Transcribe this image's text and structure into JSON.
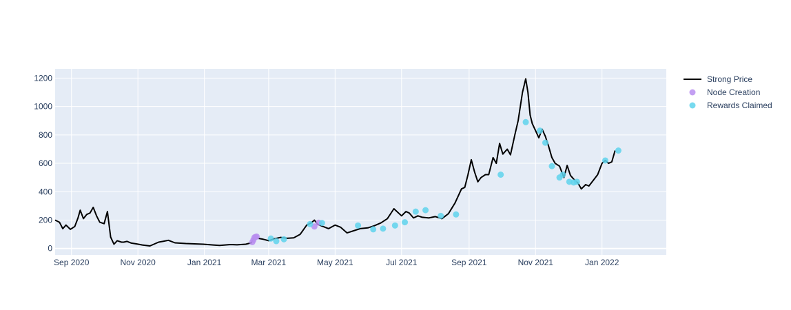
{
  "chart_data": {
    "type": "line",
    "xlim": [
      "2020-08-17",
      "2022-03-01"
    ],
    "ylim": [
      -45,
      1265
    ],
    "y_ticks": [
      0,
      200,
      400,
      600,
      800,
      1000,
      1200
    ],
    "x_ticks": [
      {
        "date": "2020-09-01",
        "label": "Sep 2020"
      },
      {
        "date": "2020-11-01",
        "label": "Nov 2020"
      },
      {
        "date": "2021-01-01",
        "label": "Jan 2021"
      },
      {
        "date": "2021-03-01",
        "label": "Mar 2021"
      },
      {
        "date": "2021-05-01",
        "label": "May 2021"
      },
      {
        "date": "2021-07-01",
        "label": "Jul 2021"
      },
      {
        "date": "2021-09-01",
        "label": "Sep 2021"
      },
      {
        "date": "2021-11-01",
        "label": "Nov 2021"
      },
      {
        "date": "2022-01-01",
        "label": "Jan 2022"
      }
    ],
    "grid": true,
    "legend_position": "top-right",
    "colors": {
      "plot_bg": "#e5ecf6",
      "grid": "#ffffff",
      "price": "#000000",
      "node": "#b98ef0",
      "rewards": "#5fd3ec"
    },
    "series": [
      {
        "name": "Strong Price",
        "type": "line",
        "x": [
          "2020-08-17",
          "2020-08-21",
          "2020-08-24",
          "2020-08-27",
          "2020-08-31",
          "2020-09-04",
          "2020-09-07",
          "2020-09-09",
          "2020-09-12",
          "2020-09-15",
          "2020-09-18",
          "2020-09-21",
          "2020-09-24",
          "2020-09-27",
          "2020-10-01",
          "2020-10-04",
          "2020-10-07",
          "2020-10-10",
          "2020-10-13",
          "2020-10-17",
          "2020-10-19",
          "2020-10-22",
          "2020-10-26",
          "2020-10-31",
          "2020-11-05",
          "2020-11-12",
          "2020-11-20",
          "2020-11-24",
          "2020-11-29",
          "2020-12-05",
          "2020-12-15",
          "2020-12-31",
          "2021-01-09",
          "2021-01-15",
          "2021-01-25",
          "2021-01-31",
          "2021-02-08",
          "2021-02-13",
          "2021-02-16",
          "2021-02-19",
          "2021-02-24",
          "2021-03-01",
          "2021-03-06",
          "2021-03-12",
          "2021-03-18",
          "2021-03-24",
          "2021-03-30",
          "2021-04-05",
          "2021-04-09",
          "2021-04-12",
          "2021-04-15",
          "2021-04-20",
          "2021-04-25",
          "2021-05-01",
          "2021-05-06",
          "2021-05-12",
          "2021-05-18",
          "2021-05-24",
          "2021-05-31",
          "2021-06-06",
          "2021-06-12",
          "2021-06-18",
          "2021-06-24",
          "2021-07-01",
          "2021-07-05",
          "2021-07-08",
          "2021-07-12",
          "2021-07-16",
          "2021-07-20",
          "2021-07-26",
          "2021-08-01",
          "2021-08-07",
          "2021-08-13",
          "2021-08-19",
          "2021-08-25",
          "2021-08-28",
          "2021-08-31",
          "2021-09-03",
          "2021-09-06",
          "2021-09-09",
          "2021-09-12",
          "2021-09-16",
          "2021-09-19",
          "2021-09-23",
          "2021-09-26",
          "2021-09-29",
          "2021-10-02",
          "2021-10-06",
          "2021-10-09",
          "2021-10-13",
          "2021-10-16",
          "2021-10-20",
          "2021-10-23",
          "2021-10-25",
          "2021-10-27",
          "2021-10-29",
          "2021-11-01",
          "2021-11-04",
          "2021-11-07",
          "2021-11-10",
          "2021-11-13",
          "2021-11-16",
          "2021-11-19",
          "2021-11-23",
          "2021-11-27",
          "2021-11-30",
          "2021-12-03",
          "2021-12-07",
          "2021-12-10",
          "2021-12-13",
          "2021-12-17",
          "2021-12-20",
          "2021-12-24",
          "2021-12-28",
          "2022-01-01",
          "2022-01-04",
          "2022-01-07",
          "2022-01-10",
          "2022-01-13"
        ],
        "y": [
          200,
          185,
          140,
          165,
          135,
          155,
          215,
          270,
          210,
          240,
          250,
          290,
          230,
          185,
          175,
          260,
          80,
          30,
          55,
          45,
          45,
          50,
          38,
          32,
          25,
          18,
          45,
          50,
          58,
          40,
          35,
          30,
          25,
          22,
          28,
          26,
          30,
          40,
          85,
          72,
          65,
          55,
          68,
          78,
          72,
          75,
          100,
          165,
          180,
          200,
          170,
          155,
          140,
          165,
          150,
          110,
          125,
          140,
          145,
          160,
          180,
          210,
          280,
          230,
          260,
          250,
          215,
          230,
          220,
          215,
          225,
          210,
          245,
          320,
          420,
          430,
          520,
          625,
          540,
          470,
          500,
          520,
          520,
          640,
          600,
          740,
          665,
          700,
          660,
          800,
          900,
          1100,
          1195,
          1100,
          940,
          880,
          830,
          780,
          840,
          790,
          720,
          640,
          600,
          580,
          500,
          585,
          515,
          480,
          460,
          420,
          450,
          440,
          480,
          520,
          600,
          620,
          600,
          610,
          690
        ]
      },
      {
        "name": "Node Creation",
        "type": "scatter",
        "x": [
          "2021-02-14",
          "2021-02-15",
          "2021-02-16",
          "2021-02-17",
          "2021-02-18",
          "2021-04-12",
          "2021-04-16"
        ],
        "y": [
          45,
          60,
          78,
          82,
          84,
          155,
          182
        ]
      },
      {
        "name": "Rewards Claimed",
        "type": "scatter",
        "x": [
          "2021-03-03",
          "2021-03-08",
          "2021-03-15",
          "2021-04-08",
          "2021-04-19",
          "2021-05-22",
          "2021-06-05",
          "2021-06-14",
          "2021-06-25",
          "2021-07-04",
          "2021-07-14",
          "2021-07-23",
          "2021-08-06",
          "2021-08-20",
          "2021-09-30",
          "2021-10-23",
          "2021-11-05",
          "2021-11-10",
          "2021-11-16",
          "2021-11-23",
          "2021-11-26",
          "2021-12-02",
          "2021-12-06",
          "2021-12-09",
          "2022-01-04",
          "2022-01-16"
        ],
        "y": [
          70,
          52,
          65,
          172,
          180,
          162,
          135,
          140,
          162,
          185,
          260,
          270,
          230,
          240,
          520,
          890,
          830,
          745,
          580,
          500,
          520,
          470,
          465,
          470,
          620,
          690
        ]
      }
    ]
  }
}
